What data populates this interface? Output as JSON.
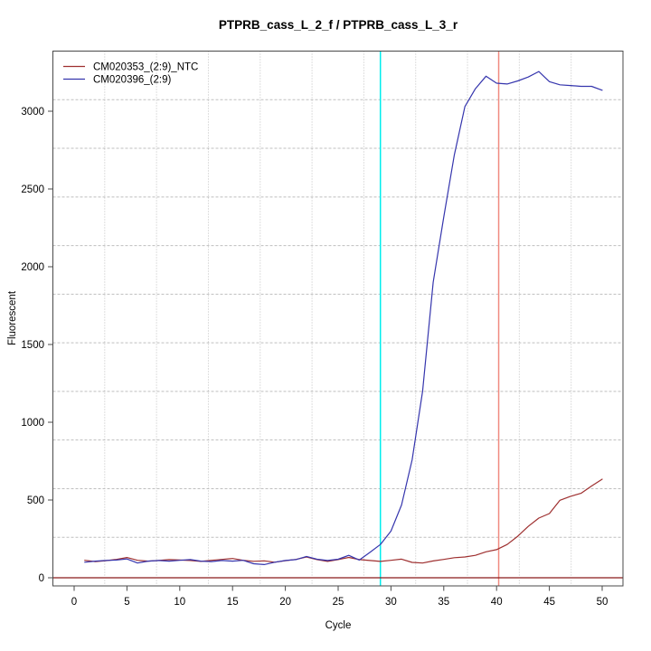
{
  "chart_data": {
    "type": "line",
    "title": "PTPRB_cass_L_2_f / PTPRB_cass_L_3_r",
    "xlabel": "Cycle",
    "ylabel": "Fluorescent",
    "x_ticks": [
      0,
      5,
      10,
      15,
      20,
      25,
      30,
      35,
      40,
      45,
      50
    ],
    "y_ticks": [
      0,
      500,
      1000,
      1500,
      2000,
      2500,
      3000
    ],
    "xlim": [
      -2,
      52
    ],
    "ylim": [
      -55,
      3390
    ],
    "grid": {
      "style": "dotted",
      "color": "#bfbfbf",
      "divisions_x": 11,
      "divisions_y": 11
    },
    "legend_position": "top-left",
    "x": [
      1,
      2,
      3,
      4,
      5,
      6,
      7,
      8,
      9,
      10,
      11,
      12,
      13,
      14,
      15,
      16,
      17,
      18,
      19,
      20,
      21,
      22,
      23,
      24,
      25,
      26,
      27,
      28,
      29,
      30,
      31,
      32,
      33,
      34,
      35,
      36,
      37,
      38,
      39,
      40,
      41,
      42,
      43,
      44,
      45,
      46,
      47,
      48,
      49,
      50
    ],
    "series": [
      {
        "name": "CM020353_(2:9)_NTC",
        "color": "#9e2f2f",
        "values": [
          112,
          104,
          110,
          118,
          130,
          112,
          107,
          111,
          117,
          114,
          111,
          105,
          112,
          118,
          124,
          112,
          106,
          109,
          100,
          110,
          118,
          134,
          117,
          105,
          117,
          131,
          117,
          111,
          105,
          112,
          120,
          99,
          95,
          108,
          118,
          129,
          134,
          144,
          167,
          181,
          214,
          267,
          330,
          384,
          413,
          498,
          524,
          543,
          590,
          634
        ]
      },
      {
        "name": "CM020396_(2:9)",
        "color": "#3535ad",
        "values": [
          100,
          107,
          111,
          114,
          121,
          95,
          107,
          111,
          107,
          112,
          117,
          107,
          104,
          111,
          107,
          112,
          90,
          85,
          100,
          111,
          117,
          137,
          119,
          111,
          119,
          144,
          114,
          163,
          214,
          300,
          468,
          758,
          1200,
          1900,
          2320,
          2720,
          3030,
          3145,
          3225,
          3180,
          3175,
          3195,
          3220,
          3255,
          3190,
          3170,
          3165,
          3160,
          3160,
          3135
        ]
      }
    ],
    "vlines": [
      {
        "x": 29,
        "color": "#00eeee"
      },
      {
        "x": 40.2,
        "color": "#f08a80"
      }
    ],
    "hlines": [
      {
        "y": 0,
        "color": "#8b1a1a"
      }
    ]
  }
}
